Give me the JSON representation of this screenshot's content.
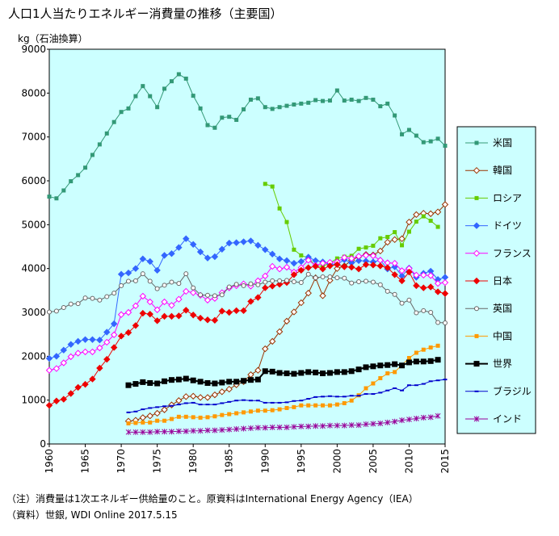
{
  "chart_data": {
    "type": "line",
    "title": "人口1人当たりエネルギー消費量の推移（主要国）",
    "ylabel": "kg（石油換算）",
    "notes": [
      "（注）消費量は1次エネルギー供給量のこと。原資料はInternational Energy Agency（IEA）",
      "（資料）世銀, WDI Online 2017.5.15"
    ],
    "x": [
      1960,
      1961,
      1962,
      1963,
      1964,
      1965,
      1966,
      1967,
      1968,
      1969,
      1970,
      1971,
      1972,
      1973,
      1974,
      1975,
      1976,
      1977,
      1978,
      1979,
      1980,
      1981,
      1982,
      1983,
      1984,
      1985,
      1986,
      1987,
      1988,
      1989,
      1990,
      1991,
      1992,
      1993,
      1994,
      1995,
      1996,
      1997,
      1998,
      1999,
      2000,
      2001,
      2002,
      2003,
      2004,
      2005,
      2006,
      2007,
      2008,
      2009,
      2010,
      2011,
      2012,
      2013,
      2014,
      2015
    ],
    "xlim": [
      1960,
      2015
    ],
    "xticks": [
      1960,
      1965,
      1970,
      1975,
      1980,
      1985,
      1990,
      1995,
      2000,
      2005,
      2010,
      2015
    ],
    "ylim": [
      0,
      9000
    ],
    "yticks": [
      0,
      1000,
      2000,
      3000,
      4000,
      5000,
      6000,
      7000,
      8000,
      9000
    ],
    "grid": false,
    "plot_background": "#ccffff",
    "legend": "right",
    "series": [
      {
        "name": "米国",
        "color": "#339977",
        "marker": "square",
        "values": [
          5640,
          5600,
          5780,
          5990,
          6130,
          6300,
          6590,
          6830,
          7080,
          7340,
          7570,
          7650,
          7930,
          8160,
          7930,
          7680,
          8100,
          8270,
          8430,
          8330,
          7940,
          7650,
          7270,
          7210,
          7440,
          7460,
          7390,
          7630,
          7850,
          7880,
          7680,
          7640,
          7680,
          7710,
          7740,
          7760,
          7780,
          7840,
          7820,
          7830,
          8060,
          7830,
          7850,
          7820,
          7890,
          7850,
          7700,
          7760,
          7490,
          7060,
          7160,
          7030,
          6880,
          6900,
          6960,
          6800
        ]
      },
      {
        "name": "韓国",
        "color": "#993300",
        "marker": "diamond-open",
        "values": [
          null,
          null,
          null,
          null,
          null,
          null,
          null,
          null,
          null,
          null,
          null,
          520,
          540,
          600,
          640,
          700,
          780,
          890,
          990,
          1080,
          1090,
          1060,
          1060,
          1120,
          1190,
          1250,
          1350,
          1420,
          1580,
          1680,
          2170,
          2340,
          2560,
          2800,
          3010,
          3220,
          3440,
          3790,
          3380,
          3730,
          4000,
          4060,
          4190,
          4270,
          4320,
          4310,
          4400,
          4600,
          4660,
          4680,
          5060,
          5230,
          5260,
          5250,
          5290,
          5460
        ]
      },
      {
        "name": "ロシア",
        "color": "#66cc00",
        "marker": "square",
        "values": [
          null,
          null,
          null,
          null,
          null,
          null,
          null,
          null,
          null,
          null,
          null,
          null,
          null,
          null,
          null,
          null,
          null,
          null,
          null,
          null,
          null,
          null,
          null,
          null,
          null,
          null,
          null,
          null,
          null,
          null,
          5930,
          5870,
          5370,
          5060,
          4430,
          4300,
          4240,
          4060,
          4050,
          4130,
          4230,
          4270,
          4290,
          4450,
          4480,
          4520,
          4690,
          4720,
          4830,
          4530,
          4840,
          5070,
          5190,
          5090,
          4950,
          null
        ]
      },
      {
        "name": "ドイツ",
        "color": "#3366ff",
        "marker": "diamond",
        "values": [
          1950,
          2000,
          2140,
          2270,
          2340,
          2380,
          2380,
          2370,
          2550,
          2740,
          3870,
          3900,
          4000,
          4220,
          4160,
          3960,
          4300,
          4340,
          4480,
          4680,
          4550,
          4380,
          4240,
          4270,
          4440,
          4580,
          4590,
          4610,
          4630,
          4530,
          4430,
          4330,
          4220,
          4180,
          4120,
          4160,
          4260,
          4180,
          4150,
          4100,
          4100,
          4200,
          4130,
          4180,
          4170,
          4150,
          4190,
          3990,
          4040,
          3830,
          4010,
          3800,
          3890,
          3940,
          3750,
          3800
        ]
      },
      {
        "name": "フランス",
        "color": "#ff00ff",
        "marker": "diamond-open",
        "values": [
          1680,
          1720,
          1850,
          1990,
          2070,
          2100,
          2100,
          2190,
          2320,
          2490,
          2950,
          3000,
          3150,
          3370,
          3240,
          3060,
          3240,
          3160,
          3300,
          3480,
          3450,
          3390,
          3280,
          3320,
          3450,
          3560,
          3610,
          3650,
          3600,
          3720,
          3830,
          4050,
          3990,
          4030,
          3920,
          4020,
          4190,
          4070,
          4120,
          4140,
          4150,
          4250,
          4230,
          4280,
          4300,
          4290,
          4190,
          4130,
          4120,
          3950,
          4000,
          3850,
          3850,
          3840,
          3660,
          3680
        ]
      },
      {
        "name": "日本",
        "color": "#ee0000",
        "marker": "diamond",
        "values": [
          880,
          980,
          1020,
          1150,
          1290,
          1360,
          1480,
          1730,
          1930,
          2200,
          2460,
          2540,
          2700,
          2980,
          2960,
          2810,
          2910,
          2910,
          2920,
          3050,
          2940,
          2870,
          2830,
          2820,
          3030,
          3000,
          3040,
          3040,
          3250,
          3340,
          3560,
          3600,
          3640,
          3680,
          3860,
          3960,
          4020,
          4050,
          3990,
          4060,
          4090,
          4040,
          4030,
          3990,
          4090,
          4080,
          4060,
          4020,
          3860,
          3720,
          3920,
          3610,
          3560,
          3580,
          3470,
          3430
        ]
      },
      {
        "name": "英国",
        "color": "#666666",
        "marker": "circle-open",
        "values": [
          3010,
          3030,
          3110,
          3190,
          3200,
          3330,
          3320,
          3280,
          3360,
          3440,
          3610,
          3710,
          3720,
          3880,
          3710,
          3540,
          3620,
          3690,
          3660,
          3880,
          3560,
          3400,
          3390,
          3380,
          3400,
          3580,
          3640,
          3610,
          3650,
          3630,
          3690,
          3720,
          3720,
          3730,
          3700,
          3680,
          3870,
          3790,
          3810,
          3810,
          3790,
          3780,
          3670,
          3700,
          3710,
          3690,
          3630,
          3480,
          3410,
          3210,
          3280,
          2990,
          3040,
          3000,
          2770,
          2760
        ]
      },
      {
        "name": "中国",
        "color": "#ff9900",
        "marker": "square",
        "values": [
          null,
          null,
          null,
          null,
          null,
          null,
          null,
          null,
          null,
          null,
          null,
          470,
          480,
          490,
          490,
          530,
          530,
          570,
          620,
          620,
          610,
          600,
          610,
          630,
          660,
          680,
          700,
          720,
          740,
          760,
          760,
          770,
          790,
          820,
          840,
          880,
          880,
          880,
          880,
          880,
          900,
          930,
          990,
          1110,
          1270,
          1380,
          1500,
          1610,
          1640,
          1800,
          1960,
          2080,
          2150,
          2200,
          2240,
          null
        ]
      },
      {
        "name": "世界",
        "color": "#000000",
        "marker": "square-big",
        "values": [
          null,
          null,
          null,
          null,
          null,
          null,
          null,
          null,
          null,
          null,
          null,
          1340,
          1370,
          1410,
          1390,
          1380,
          1430,
          1460,
          1470,
          1490,
          1450,
          1420,
          1390,
          1380,
          1400,
          1420,
          1420,
          1440,
          1460,
          1470,
          1660,
          1650,
          1620,
          1610,
          1600,
          1620,
          1640,
          1630,
          1610,
          1620,
          1640,
          1640,
          1660,
          1700,
          1750,
          1770,
          1790,
          1800,
          1820,
          1790,
          1860,
          1880,
          1880,
          1890,
          1920,
          null
        ]
      },
      {
        "name": "ブラジル",
        "color": "#0000cc",
        "marker": "dash",
        "values": [
          null,
          null,
          null,
          null,
          null,
          null,
          null,
          null,
          null,
          null,
          null,
          720,
          740,
          790,
          820,
          840,
          860,
          870,
          900,
          930,
          940,
          900,
          900,
          900,
          930,
          960,
          990,
          1000,
          990,
          990,
          940,
          940,
          940,
          950,
          980,
          990,
          1030,
          1070,
          1080,
          1090,
          1080,
          1080,
          1100,
          1100,
          1140,
          1140,
          1170,
          1220,
          1270,
          1220,
          1340,
          1340,
          1370,
          1430,
          1450,
          1470
        ]
      },
      {
        "name": "インド",
        "color": "#990099",
        "marker": "star",
        "values": [
          null,
          null,
          null,
          null,
          null,
          null,
          null,
          null,
          null,
          null,
          null,
          270,
          270,
          270,
          270,
          280,
          280,
          280,
          290,
          290,
          300,
          300,
          310,
          310,
          320,
          330,
          340,
          350,
          360,
          370,
          370,
          380,
          380,
          380,
          390,
          400,
          400,
          410,
          410,
          420,
          420,
          420,
          430,
          430,
          450,
          460,
          470,
          490,
          510,
          540,
          560,
          580,
          600,
          610,
          640,
          null
        ]
      }
    ]
  }
}
